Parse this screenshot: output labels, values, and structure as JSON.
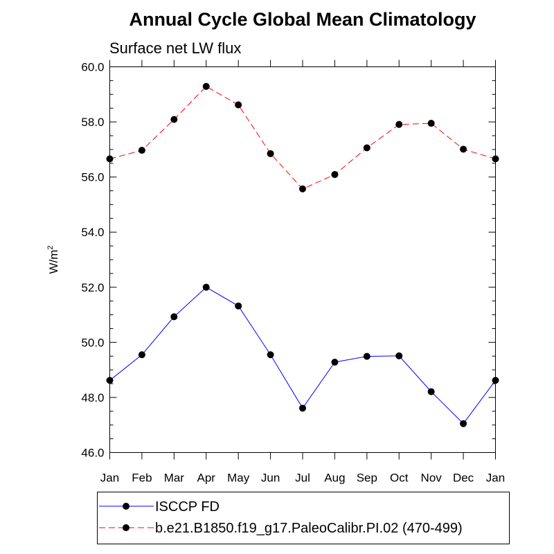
{
  "chart_data": {
    "type": "line",
    "title": "Annual Cycle Global Mean Climatology",
    "subtitle": "Surface net LW flux",
    "ylabel": "W/m",
    "ylabel_superscript": "2",
    "xlabel": "",
    "categories": [
      "Jan",
      "Feb",
      "Mar",
      "Apr",
      "May",
      "Jun",
      "Jul",
      "Aug",
      "Sep",
      "Oct",
      "Nov",
      "Dec",
      "Jan"
    ],
    "ylim": [
      46.0,
      60.0
    ],
    "y_ticks": [
      "46.0",
      "48.0",
      "50.0",
      "52.0",
      "54.0",
      "56.0",
      "58.0",
      "60.0"
    ],
    "y_tick_values": [
      46,
      48,
      50,
      52,
      54,
      56,
      58,
      60
    ],
    "grid": false,
    "legend_position": "bottom",
    "series": [
      {
        "name": "ISCCP FD",
        "color": "#0000ff",
        "line_style": "solid",
        "marker": "filled-circle",
        "values": [
          48.62,
          49.55,
          50.93,
          52.0,
          51.32,
          49.55,
          47.61,
          49.28,
          49.49,
          49.51,
          48.21,
          47.05,
          48.62
        ]
      },
      {
        "name": "b.e21.B1850.f19_g17.PaleoCalibr.PI.02 (470-499)",
        "color": "#ff0000",
        "line_style": "dashed",
        "marker": "filled-circle",
        "values": [
          56.66,
          56.97,
          58.09,
          59.29,
          58.62,
          56.85,
          55.57,
          56.09,
          57.06,
          57.91,
          57.95,
          57.01,
          56.66
        ]
      }
    ]
  }
}
